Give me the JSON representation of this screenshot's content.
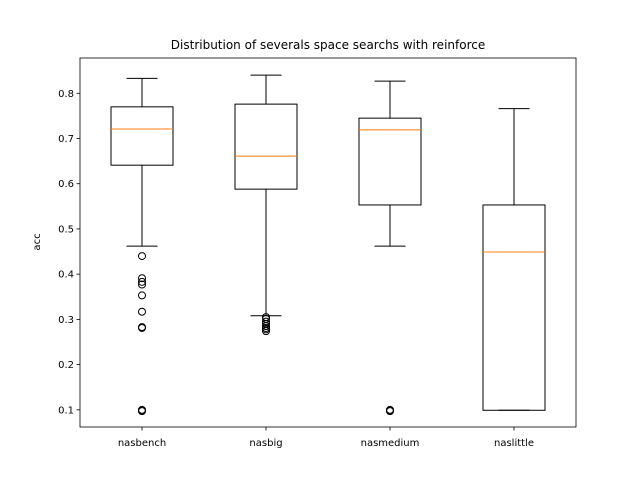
{
  "chart_data": {
    "type": "box",
    "title": "Distribution of severals space searchs with reinforce",
    "xlabel": "",
    "ylabel": "acc",
    "ylim": [
      0.062,
      0.878
    ],
    "yticks": [
      "0.1",
      "0.2",
      "0.3",
      "0.4",
      "0.5",
      "0.6",
      "0.7",
      "0.8"
    ],
    "grid": false,
    "colors": {
      "box": "#000000",
      "median": "#ff7f0e",
      "outlier": "#000000"
    },
    "categories": [
      "nasbench",
      "nasbig",
      "nasmedium",
      "naslittle"
    ],
    "boxes": [
      {
        "name": "nasbench",
        "whisker_low": 0.462,
        "q1": 0.641,
        "median": 0.721,
        "q3": 0.77,
        "whisker_high": 0.833,
        "outliers": [
          0.44,
          0.391,
          0.383,
          0.377,
          0.353,
          0.317,
          0.283,
          0.281,
          0.1,
          0.098,
          0.097
        ]
      },
      {
        "name": "nasbig",
        "whisker_low": 0.308,
        "q1": 0.588,
        "median": 0.661,
        "q3": 0.776,
        "whisker_high": 0.84,
        "outliers": [
          0.305,
          0.301,
          0.295,
          0.29,
          0.285,
          0.281,
          0.278,
          0.274
        ]
      },
      {
        "name": "nasmedium",
        "whisker_low": 0.462,
        "q1": 0.553,
        "median": 0.719,
        "q3": 0.745,
        "whisker_high": 0.827,
        "outliers": [
          0.1,
          0.098,
          0.097
        ]
      },
      {
        "name": "naslittle",
        "whisker_low": 0.099,
        "q1": 0.099,
        "median": 0.449,
        "q3": 0.553,
        "whisker_high": 0.766,
        "outliers": []
      }
    ]
  }
}
